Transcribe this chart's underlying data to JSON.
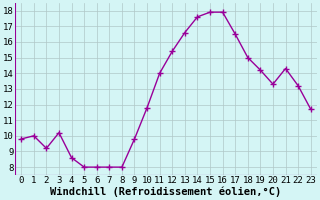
{
  "x": [
    0,
    1,
    2,
    3,
    4,
    5,
    6,
    7,
    8,
    9,
    10,
    11,
    12,
    13,
    14,
    15,
    16,
    17,
    18,
    19,
    20,
    21,
    22,
    23
  ],
  "y": [
    9.8,
    10.0,
    9.2,
    10.2,
    8.6,
    8.0,
    8.0,
    8.0,
    8.0,
    9.8,
    11.8,
    14.0,
    15.4,
    16.6,
    17.6,
    17.9,
    17.9,
    16.5,
    15.0,
    14.2,
    13.3,
    14.3,
    13.2,
    11.7
  ],
  "line_color": "#990099",
  "marker": "+",
  "marker_size": 4,
  "marker_linewidth": 1.0,
  "line_width": 1.0,
  "bg_color": "#d4f5f5",
  "grid_color": "#b0c8c8",
  "xlabel": "Windchill (Refroidissement éolien,°C)",
  "xlabel_fontsize": 7.5,
  "yticks": [
    8,
    9,
    10,
    11,
    12,
    13,
    14,
    15,
    16,
    17,
    18
  ],
  "ylim": [
    7.5,
    18.5
  ],
  "xlim": [
    -0.5,
    23.5
  ],
  "xticks": [
    0,
    1,
    2,
    3,
    4,
    5,
    6,
    7,
    8,
    9,
    10,
    11,
    12,
    13,
    14,
    15,
    16,
    17,
    18,
    19,
    20,
    21,
    22,
    23
  ],
  "tick_fontsize": 6.5,
  "xlabel_fontweight": "bold"
}
